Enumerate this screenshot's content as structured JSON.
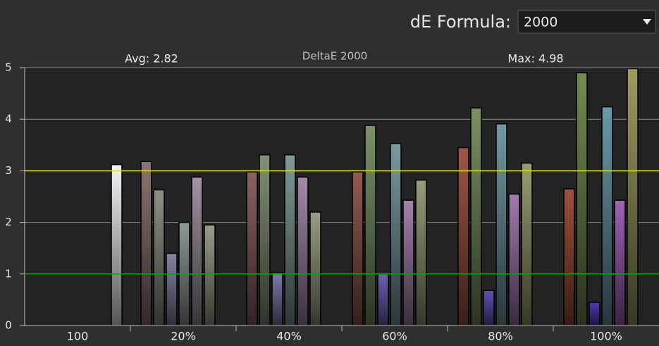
{
  "header": {
    "formula_label": "dE Formula:",
    "formula_value": "2000"
  },
  "chart_data": {
    "type": "bar",
    "title": "DeltaE 2000",
    "avg_label": "Avg: 2.82",
    "max_label": "Max: 4.98",
    "categories": [
      "100",
      "20%",
      "40%",
      "60%",
      "80%",
      "100%"
    ],
    "ylim": [
      0,
      5
    ],
    "yticks": [
      0,
      1,
      2,
      3,
      4,
      5
    ],
    "grid": true,
    "reference_lines": [
      {
        "value": 3,
        "color": "#e6e600"
      },
      {
        "value": 1,
        "color": "#10a010"
      }
    ],
    "series": [
      {
        "colors": [
          "#f4f4f4",
          null,
          null,
          null,
          null,
          null
        ],
        "values": [
          3.12,
          null,
          null,
          null,
          null,
          null
        ]
      },
      {
        "colors": [
          null,
          "#8c7474",
          "#8c6262",
          "#925a52",
          "#a05646",
          "#a0503a"
        ],
        "values": [
          null,
          3.18,
          2.98,
          2.98,
          3.45,
          2.65
        ]
      },
      {
        "colors": [
          null,
          "#8c9284",
          "#829274",
          "#7c926a",
          "#7a9262",
          "#728c52"
        ],
        "values": [
          null,
          2.63,
          3.31,
          3.88,
          4.22,
          4.9
        ]
      },
      {
        "colors": [
          null,
          "#8484a4",
          "#7c7cac",
          "#6c62b2",
          "#5c52b4",
          "#4c3ab4"
        ],
        "values": [
          null,
          1.4,
          1.03,
          1.0,
          0.68,
          0.45
        ]
      },
      {
        "colors": [
          null,
          "#8c9a9a",
          "#829a9a",
          "#7c9aa2",
          "#729aa2",
          "#6a9aaa"
        ],
        "values": [
          null,
          2.0,
          3.31,
          3.53,
          3.91,
          4.24
        ]
      },
      {
        "colors": [
          null,
          "#a494a4",
          "#a48aaa",
          "#a282aa",
          "#a27ab2",
          "#a262ba"
        ],
        "values": [
          null,
          2.88,
          2.88,
          2.43,
          2.55,
          2.43
        ]
      },
      {
        "colors": [
          null,
          "#9c9c8a",
          "#9c9c82",
          "#9c9c7a",
          "#9c9c72",
          "#9c9c62"
        ],
        "values": [
          null,
          1.95,
          2.2,
          2.82,
          3.15,
          4.98
        ]
      }
    ]
  }
}
